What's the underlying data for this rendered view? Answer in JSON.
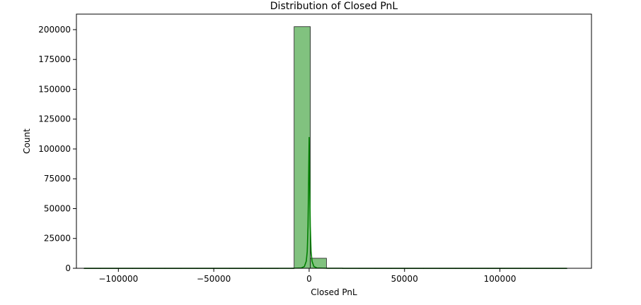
{
  "chart_data": {
    "type": "bar",
    "title": "Distribution of Closed PnL",
    "xlabel": "Closed PnL",
    "ylabel": "Count",
    "xlim": [
      -122000,
      148000
    ],
    "ylim": [
      0,
      213000
    ],
    "xticks": [
      -100000,
      -50000,
      0,
      50000,
      100000
    ],
    "xtick_labels": [
      "−100000",
      "−50000",
      "0",
      "50000",
      "100000"
    ],
    "yticks": [
      0,
      25000,
      50000,
      75000,
      100000,
      125000,
      150000,
      175000,
      200000
    ],
    "ytick_labels": [
      "0",
      "25000",
      "50000",
      "75000",
      "100000",
      "125000",
      "150000",
      "175000",
      "200000"
    ],
    "grid": false,
    "bins": [
      {
        "x0": -117991,
        "x1": -109520,
        "count": 0
      },
      {
        "x0": -109520,
        "x1": -101049,
        "count": 2
      },
      {
        "x0": -101049,
        "x1": -92578,
        "count": 0
      },
      {
        "x0": -92578,
        "x1": -84107,
        "count": 0
      },
      {
        "x0": -84107,
        "x1": -75636,
        "count": 0
      },
      {
        "x0": -75636,
        "x1": -67165,
        "count": 0
      },
      {
        "x0": -67165,
        "x1": -58694,
        "count": 0
      },
      {
        "x0": -58694,
        "x1": -50223,
        "count": 0
      },
      {
        "x0": -50223,
        "x1": -41752,
        "count": 0
      },
      {
        "x0": -41752,
        "x1": -33281,
        "count": 3
      },
      {
        "x0": -33281,
        "x1": -24810,
        "count": 5
      },
      {
        "x0": -24810,
        "x1": -16339,
        "count": 12
      },
      {
        "x0": -16339,
        "x1": -7868,
        "count": 60
      },
      {
        "x0": -7868,
        "x1": 603,
        "count": 202500
      },
      {
        "x0": 603,
        "x1": 9074,
        "count": 8400
      },
      {
        "x0": 9074,
        "x1": 17545,
        "count": 180
      },
      {
        "x0": 17545,
        "x1": 26016,
        "count": 45
      },
      {
        "x0": 26016,
        "x1": 34487,
        "count": 20
      },
      {
        "x0": 34487,
        "x1": 42958,
        "count": 10
      },
      {
        "x0": 42958,
        "x1": 51429,
        "count": 6
      },
      {
        "x0": 51429,
        "x1": 59900,
        "count": 4
      },
      {
        "x0": 59900,
        "x1": 68371,
        "count": 3
      },
      {
        "x0": 68371,
        "x1": 76842,
        "count": 2
      },
      {
        "x0": 76842,
        "x1": 85313,
        "count": 2
      },
      {
        "x0": 85313,
        "x1": 93784,
        "count": 1
      },
      {
        "x0": 93784,
        "x1": 102255,
        "count": 1
      },
      {
        "x0": 102255,
        "x1": 110726,
        "count": 0
      },
      {
        "x0": 110726,
        "x1": 119197,
        "count": 1
      },
      {
        "x0": 119197,
        "x1": 127668,
        "count": 0
      },
      {
        "x0": 127668,
        "x1": 135139,
        "count": 1
      }
    ],
    "kde": [
      [
        -117991,
        0
      ],
      [
        -10000,
        0
      ],
      [
        -4000,
        300
      ],
      [
        -2500,
        1500
      ],
      [
        -1500,
        6000
      ],
      [
        -1000,
        14000
      ],
      [
        -600,
        35000
      ],
      [
        -300,
        70000
      ],
      [
        0,
        110000
      ],
      [
        300,
        70000
      ],
      [
        600,
        35000
      ],
      [
        1000,
        14000
      ],
      [
        1500,
        6000
      ],
      [
        2500,
        1500
      ],
      [
        4000,
        300
      ],
      [
        10000,
        0
      ],
      [
        135139,
        0
      ]
    ],
    "colors": {
      "bar_fill": "#81c27f",
      "bar_edge": "#1a1a1a",
      "kde_line": "#008000",
      "axes": "#000000"
    }
  }
}
